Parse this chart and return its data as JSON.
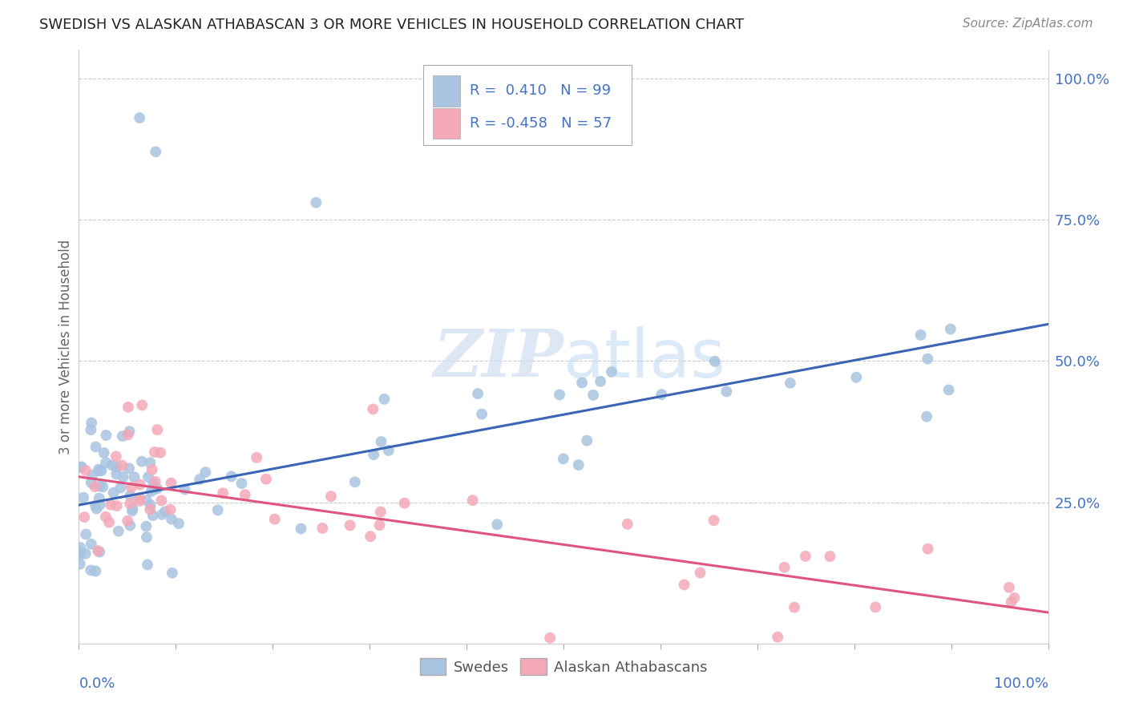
{
  "title": "SWEDISH VS ALASKAN ATHABASCAN 3 OR MORE VEHICLES IN HOUSEHOLD CORRELATION CHART",
  "source": "Source: ZipAtlas.com",
  "ylabel": "3 or more Vehicles in Household",
  "blue_color": "#a8c4e0",
  "pink_color": "#f4a8b8",
  "blue_line_color": "#3a65b5",
  "pink_line_color": "#e05580",
  "blue_r": 0.41,
  "blue_n": 99,
  "pink_r": -0.458,
  "pink_n": 57,
  "xlim": [
    0.0,
    1.0
  ],
  "ylim": [
    0.0,
    1.05
  ],
  "figsize": [
    14.06,
    8.92
  ],
  "dpi": 100,
  "blue_line_start_y": 0.245,
  "blue_line_end_y": 0.565,
  "pink_line_start_y": 0.295,
  "pink_line_end_y": 0.055
}
